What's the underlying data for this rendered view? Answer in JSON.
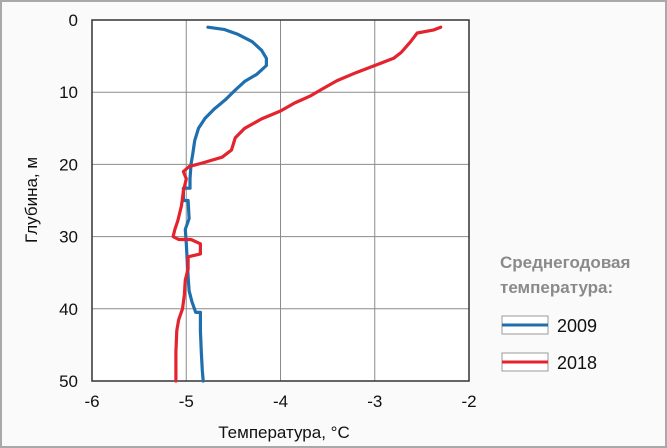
{
  "chart_data": {
    "type": "line",
    "title": "",
    "xlabel": "Температура, °С",
    "ylabel": "Глубина, м",
    "xlim": [
      -6,
      -2
    ],
    "ylim": [
      0,
      50
    ],
    "y_inverted": true,
    "x_ticks": [
      "-6",
      "-5",
      "-4",
      "-3",
      "-2"
    ],
    "y_ticks": [
      "0",
      "10",
      "20",
      "30",
      "40",
      "50"
    ],
    "grid": true,
    "legend": {
      "title_line1": "Среднегодовая",
      "title_line2": "температура:",
      "position": "right"
    },
    "colors": {
      "2009": "#1f6fae",
      "2018": "#e3232d"
    },
    "series": [
      {
        "name": "2009",
        "points": [
          [
            -4.77,
            1
          ],
          [
            -4.6,
            1.3
          ],
          [
            -4.45,
            2
          ],
          [
            -4.3,
            3
          ],
          [
            -4.2,
            4.2
          ],
          [
            -4.15,
            5.3
          ],
          [
            -4.15,
            6.3
          ],
          [
            -4.25,
            7.5
          ],
          [
            -4.38,
            8.5
          ],
          [
            -4.48,
            9.7
          ],
          [
            -4.58,
            11
          ],
          [
            -4.7,
            12.3
          ],
          [
            -4.8,
            13.6
          ],
          [
            -4.87,
            15
          ],
          [
            -4.91,
            16.7
          ],
          [
            -4.93,
            18.5
          ],
          [
            -4.95,
            20
          ],
          [
            -4.96,
            22
          ],
          [
            -4.96,
            23.3
          ],
          [
            -5.03,
            23.3
          ],
          [
            -5.03,
            25
          ],
          [
            -4.98,
            25
          ],
          [
            -4.97,
            27.5
          ],
          [
            -5.01,
            29
          ],
          [
            -5.0,
            31
          ],
          [
            -4.99,
            33.3
          ],
          [
            -4.98,
            35.5
          ],
          [
            -4.97,
            37.5
          ],
          [
            -4.94,
            39
          ],
          [
            -4.9,
            40.5
          ],
          [
            -4.85,
            40.5
          ],
          [
            -4.85,
            43
          ],
          [
            -4.84,
            46
          ],
          [
            -4.83,
            48.5
          ],
          [
            -4.82,
            50
          ]
        ]
      },
      {
        "name": "2018",
        "points": [
          [
            -2.3,
            1
          ],
          [
            -2.38,
            1.4
          ],
          [
            -2.55,
            1.8
          ],
          [
            -2.62,
            3
          ],
          [
            -2.72,
            4.5
          ],
          [
            -2.8,
            5.3
          ],
          [
            -3.0,
            6.3
          ],
          [
            -3.2,
            7.3
          ],
          [
            -3.4,
            8.4
          ],
          [
            -3.55,
            9.5
          ],
          [
            -3.68,
            10.5
          ],
          [
            -3.85,
            11.5
          ],
          [
            -4.0,
            12.6
          ],
          [
            -4.2,
            13.7
          ],
          [
            -4.38,
            15
          ],
          [
            -4.48,
            16.3
          ],
          [
            -4.52,
            18
          ],
          [
            -4.62,
            19
          ],
          [
            -4.83,
            19.8
          ],
          [
            -4.97,
            20.3
          ],
          [
            -5.03,
            21
          ],
          [
            -5.0,
            22
          ],
          [
            -5.03,
            23.7
          ],
          [
            -5.05,
            25.7
          ],
          [
            -5.09,
            27.8
          ],
          [
            -5.12,
            29
          ],
          [
            -5.14,
            30
          ],
          [
            -5.08,
            30.4
          ],
          [
            -4.95,
            30.4
          ],
          [
            -4.85,
            31
          ],
          [
            -4.85,
            32.4
          ],
          [
            -4.98,
            32.8
          ],
          [
            -4.98,
            34.5
          ],
          [
            -5.01,
            36
          ],
          [
            -5.02,
            38
          ],
          [
            -5.04,
            40
          ],
          [
            -5.08,
            41.5
          ],
          [
            -5.1,
            43
          ],
          [
            -5.11,
            46
          ],
          [
            -5.11,
            50
          ]
        ]
      }
    ]
  }
}
